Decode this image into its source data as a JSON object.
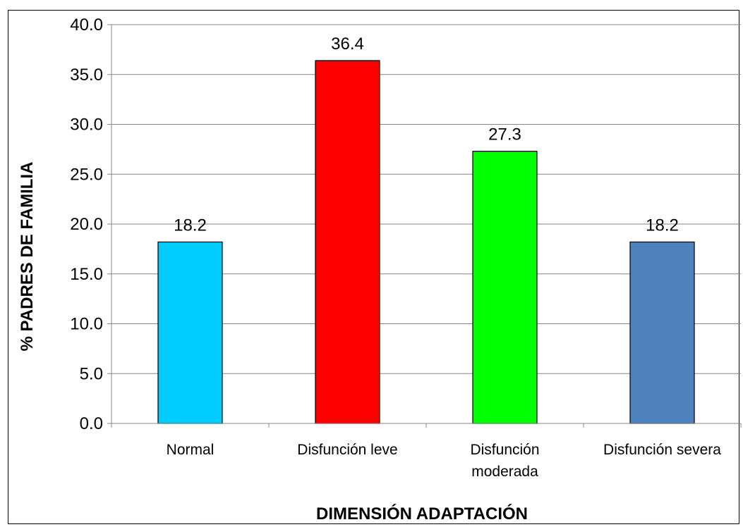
{
  "chart_data": {
    "type": "bar",
    "categories": [
      "Normal",
      "Disfunción leve",
      "Disfunción moderada",
      "Disfunción severa"
    ],
    "category_lines": [
      [
        "Normal"
      ],
      [
        "Disfunción leve"
      ],
      [
        "Disfunción",
        "moderada"
      ],
      [
        "Disfunción severa"
      ]
    ],
    "values": [
      18.2,
      36.4,
      27.3,
      18.2
    ],
    "data_labels": [
      "18.2",
      "36.4",
      "27.3",
      "18.2"
    ],
    "colors": [
      "#00CCFF",
      "#FF0000",
      "#00FF00",
      "#4F81BD"
    ],
    "title": "",
    "xlabel": "DIMENSIÓN ADAPTACIÓN",
    "ylabel": "% PADRES DE FAMILIA",
    "ylim": [
      0,
      40
    ],
    "yticks": [
      "0.0",
      "5.0",
      "10.0",
      "15.0",
      "20.0",
      "25.0",
      "30.0",
      "35.0",
      "40.0"
    ],
    "grid": true,
    "legend": "none"
  }
}
